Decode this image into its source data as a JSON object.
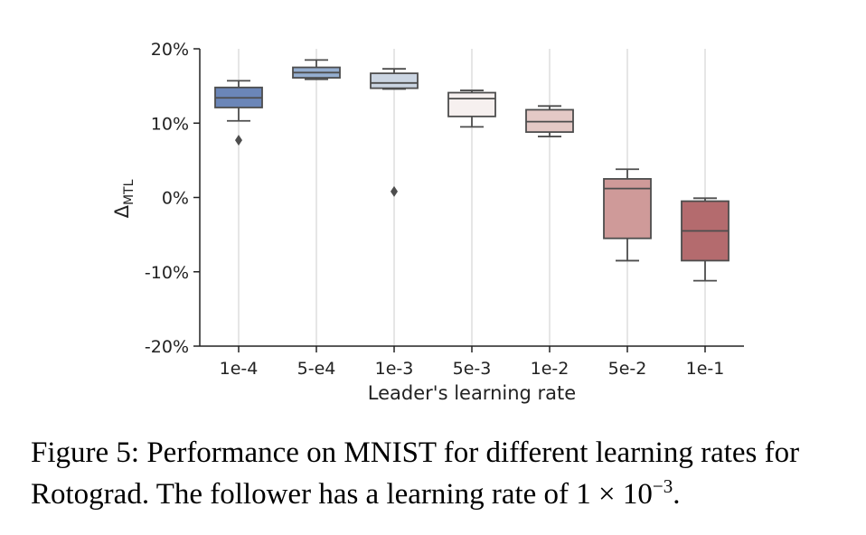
{
  "chart_data": {
    "type": "box",
    "title": "",
    "xlabel": "Leader's learning rate",
    "ylabel": "Δ",
    "ylabel_subscript": "MTL",
    "ylim": [
      -20,
      20
    ],
    "yticks": [
      20,
      10,
      0,
      -10,
      -20
    ],
    "ytick_labels": [
      "20%",
      "10%",
      "0%",
      "-10%",
      "-20%"
    ],
    "grid": "vertical",
    "categories": [
      "1e-4",
      "5-e4",
      "1e-3",
      "5e-3",
      "1e-2",
      "5e-2",
      "1e-1"
    ],
    "boxes": [
      {
        "whisker_low": 10.3,
        "q1": 12.1,
        "median": 13.4,
        "q3": 14.8,
        "whisker_high": 15.7,
        "outliers": [
          7.7
        ],
        "color": "#6b86b8"
      },
      {
        "whisker_low": 15.9,
        "q1": 16.1,
        "median": 16.8,
        "q3": 17.5,
        "whisker_high": 18.5,
        "outliers": [],
        "color": "#95aed0"
      },
      {
        "whisker_low": 14.6,
        "q1": 14.7,
        "median": 15.4,
        "q3": 16.7,
        "whisker_high": 17.3,
        "outliers": [
          0.8
        ],
        "color": "#cbd5e2"
      },
      {
        "whisker_low": 9.5,
        "q1": 10.9,
        "median": 13.3,
        "q3": 14.1,
        "whisker_high": 14.4,
        "outliers": [],
        "color": "#f6f0ef"
      },
      {
        "whisker_low": 8.2,
        "q1": 8.8,
        "median": 10.2,
        "q3": 11.8,
        "whisker_high": 12.3,
        "outliers": [],
        "color": "#e4c9c6"
      },
      {
        "whisker_low": -8.5,
        "q1": -5.5,
        "median": 1.2,
        "q3": 2.5,
        "whisker_high": 3.8,
        "outliers": [],
        "color": "#cf9a99"
      },
      {
        "whisker_low": -11.2,
        "q1": -8.5,
        "median": -4.5,
        "q3": -0.5,
        "whisker_high": -0.1,
        "outliers": [],
        "color": "#b46b6e"
      }
    ]
  },
  "caption": {
    "main": "Figure 5: Performance on MNIST for different learning rates for Rotograd. The follower has a learning rate of 1 × 10",
    "exponent": "−3",
    "end": "."
  }
}
